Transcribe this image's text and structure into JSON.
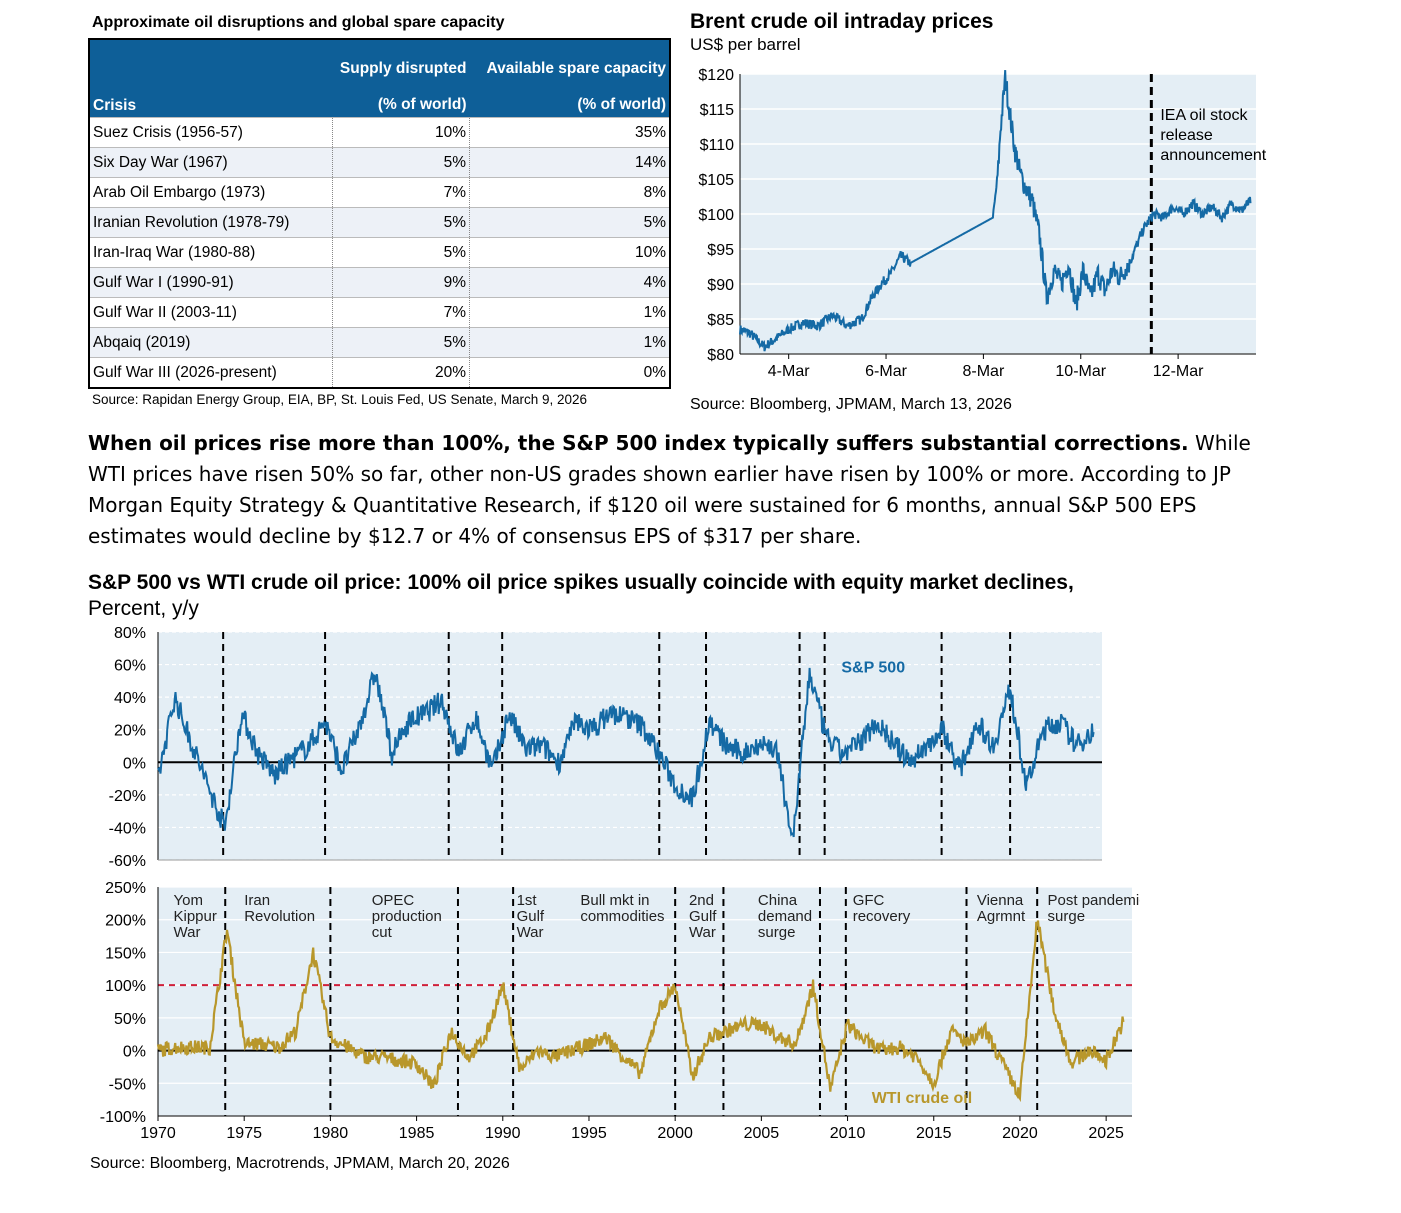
{
  "table": {
    "title": "Approximate oil disruptions and global spare capacity",
    "headers": {
      "crisis": "Crisis",
      "supply_line1": "Supply disrupted",
      "supply_line2": "(% of world)",
      "spare_line1": "Available spare capacity",
      "spare_line2": "(% of world)"
    },
    "rows": [
      {
        "crisis": "Suez Crisis (1956-57)",
        "supply": "10%",
        "spare": "35%"
      },
      {
        "crisis": "Six Day War (1967)",
        "supply": "5%",
        "spare": "14%"
      },
      {
        "crisis": "Arab Oil Embargo (1973)",
        "supply": "7%",
        "spare": "8%"
      },
      {
        "crisis": "Iranian Revolution (1978-79)",
        "supply": "5%",
        "spare": "5%"
      },
      {
        "crisis": "Iran-Iraq War (1980-88)",
        "supply": "5%",
        "spare": "10%"
      },
      {
        "crisis": "Gulf War I (1990-91)",
        "supply": "9%",
        "spare": "4%"
      },
      {
        "crisis": "Gulf War II (2003-11)",
        "supply": "7%",
        "spare": "1%"
      },
      {
        "crisis": "Abqaiq (2019)",
        "supply": "5%",
        "spare": "1%"
      },
      {
        "crisis": "Gulf War III (2026-present)",
        "supply": "20%",
        "spare": "0%"
      }
    ],
    "source": "Source: Rapidan Energy Group, EIA, BP, St. Louis Fed, US Senate, March 9, 2026"
  },
  "brent": {
    "title": "Brent crude oil intraday prices",
    "unit": "US$ per barrel",
    "source": "Source: Bloomberg, JPMAM, March 13, 2026",
    "annotation": [
      "IEA oil stock",
      "release",
      "announcement"
    ]
  },
  "paragraph": {
    "bold": "When oil prices rise more than 100%, the S&P 500 index typically suffers substantial corrections.",
    "rest": "  While WTI prices have risen 50% so far, other non-US grades shown earlier have risen by 100% or more.  According to JP Morgan Equity Strategy & Quantitative Research, if $120 oil were sustained for 6 months, annual S&P 500 EPS estimates would decline by $12.7 or 4% of consensus EPS of $317 per share."
  },
  "big_chart": {
    "title_bold": "S&P 500 vs WTI crude oil price: 100% oil price spikes usually coincide with equity market declines,",
    "title_rest": " Percent, y/y",
    "source": "Source: Bloomberg,  Macrotrends, JPMAM, March 20, 2026",
    "sp_label": "S&P 500",
    "wti_label": "WTI crude oil"
  },
  "chart_data": [
    {
      "type": "line",
      "title": "Brent crude oil intraday prices",
      "ylabel": "US$ per barrel",
      "ylim": [
        80,
        120
      ],
      "yticks": [
        "$80",
        "$85",
        "$90",
        "$95",
        "$100",
        "$105",
        "$110",
        "$115",
        "$120"
      ],
      "xticks": [
        "4-Mar",
        "6-Mar",
        "8-Mar",
        "10-Mar",
        "12-Mar"
      ],
      "x": [
        3.0,
        3.2,
        3.5,
        3.8,
        4.0,
        4.3,
        4.6,
        4.9,
        5.2,
        5.5,
        5.7,
        5.9,
        6.1,
        6.3,
        6.5,
        8.2,
        8.3,
        8.35,
        8.45,
        8.55,
        8.65,
        8.75,
        8.85,
        9.0,
        9.15,
        9.3,
        9.45,
        9.6,
        9.75,
        9.9,
        10.05,
        10.2,
        10.35,
        10.5,
        10.65,
        10.8,
        11.0,
        11.15,
        11.3,
        11.5,
        11.7,
        11.9,
        12.1,
        12.3,
        12.5,
        12.7,
        12.9,
        13.1,
        13.3,
        13.5
      ],
      "series": [
        {
          "name": "Brent",
          "values": [
            83.5,
            83.0,
            81.0,
            82.5,
            83.5,
            84.5,
            84.0,
            85.5,
            84.0,
            85.0,
            88.0,
            90.0,
            91.5,
            94.0,
            93.0,
            99.5,
            106.0,
            112.0,
            119.5,
            114.0,
            109.0,
            106.0,
            104.0,
            102.0,
            97.0,
            88.0,
            92.0,
            90.0,
            93.0,
            87.0,
            92.0,
            88.0,
            91.5,
            89.0,
            92.0,
            91.0,
            93.0,
            95.5,
            98.0,
            100.0,
            99.5,
            101.0,
            100.0,
            101.5,
            100.0,
            101.0,
            99.5,
            101.5,
            100.5,
            102.0
          ]
        }
      ],
      "annotations": [
        "IEA oil stock release announcement"
      ]
    },
    {
      "type": "line",
      "title": "S&P 500 vs WTI crude oil price: 100% oil price spikes usually coincide with equity market declines",
      "ylabel": "Percent, y/y",
      "ylim": [
        -60,
        80
      ],
      "yticks": [
        "80%",
        "60%",
        "40%",
        "20%",
        "0%",
        "-20%",
        "-40%",
        "-60%"
      ],
      "x": [
        1970,
        1971,
        1972,
        1973,
        1974,
        1975,
        1976,
        1977,
        1978,
        1979,
        1980,
        1981,
        1982,
        1983,
        1984,
        1985,
        1986,
        1987,
        1988,
        1989,
        1990,
        1991,
        1992,
        1993,
        1994,
        1995,
        1996,
        1997,
        1998,
        1999,
        2000,
        2001,
        2002,
        2003,
        2004,
        2005,
        2006,
        2007,
        2008,
        2009,
        2010,
        2011,
        2012,
        2013,
        2014,
        2015,
        2016,
        2017,
        2018,
        2019,
        2020,
        2021,
        2022,
        2023,
        2024,
        2025,
        2026
      ],
      "series": [
        {
          "name": "S&P 500",
          "values": [
            -10,
            40,
            12,
            -15,
            -40,
            30,
            5,
            -8,
            2,
            10,
            25,
            -5,
            20,
            55,
            5,
            25,
            30,
            38,
            5,
            28,
            -5,
            30,
            8,
            10,
            0,
            25,
            20,
            30,
            28,
            22,
            5,
            -15,
            -22,
            25,
            10,
            5,
            12,
            8,
            -48,
            55,
            15,
            5,
            12,
            25,
            12,
            0,
            10,
            20,
            -5,
            25,
            10,
            45,
            -15,
            20,
            25,
            10,
            20
          ]
        },
        {
          "name": "WTI crude oil",
          "values": [
            0,
            5,
            5,
            5,
            185,
            10,
            10,
            5,
            30,
            150,
            20,
            5,
            -10,
            -10,
            -15,
            -20,
            -55,
            30,
            -10,
            20,
            100,
            -30,
            0,
            -10,
            0,
            10,
            20,
            -10,
            -35,
            60,
            100,
            -40,
            20,
            30,
            40,
            40,
            20,
            10,
            100,
            -60,
            40,
            15,
            0,
            5,
            -10,
            -50,
            30,
            10,
            30,
            -20,
            -70,
            200,
            60,
            -20,
            0,
            -15,
            45
          ]
        }
      ],
      "secondary_ylim": [
        -100,
        250
      ],
      "secondary_yticks": [
        "250%",
        "200%",
        "150%",
        "100%",
        "50%",
        "0%",
        "-50%",
        "-100%"
      ],
      "xticks": [
        "1970",
        "1975",
        "1980",
        "1985",
        "1990",
        "1995",
        "2000",
        "2005",
        "2010",
        "2015",
        "2020",
        "2025"
      ],
      "reference_line": 100,
      "annotations": [
        "Yom Kippur War",
        "Iran Revolution",
        "OPEC production cut",
        "1st Gulf War",
        "Bull mkt in commodities",
        "2nd Gulf War",
        "China demand surge",
        "GFC recovery",
        "Vienna Agrmnt",
        "Post pandemic surge"
      ]
    }
  ],
  "colors": {
    "table_header": "#0e5f98",
    "sp500": "#156aa5",
    "wti": "#b8972b",
    "plot_bg": "#e4eef5",
    "ref_line": "#d0203a"
  }
}
